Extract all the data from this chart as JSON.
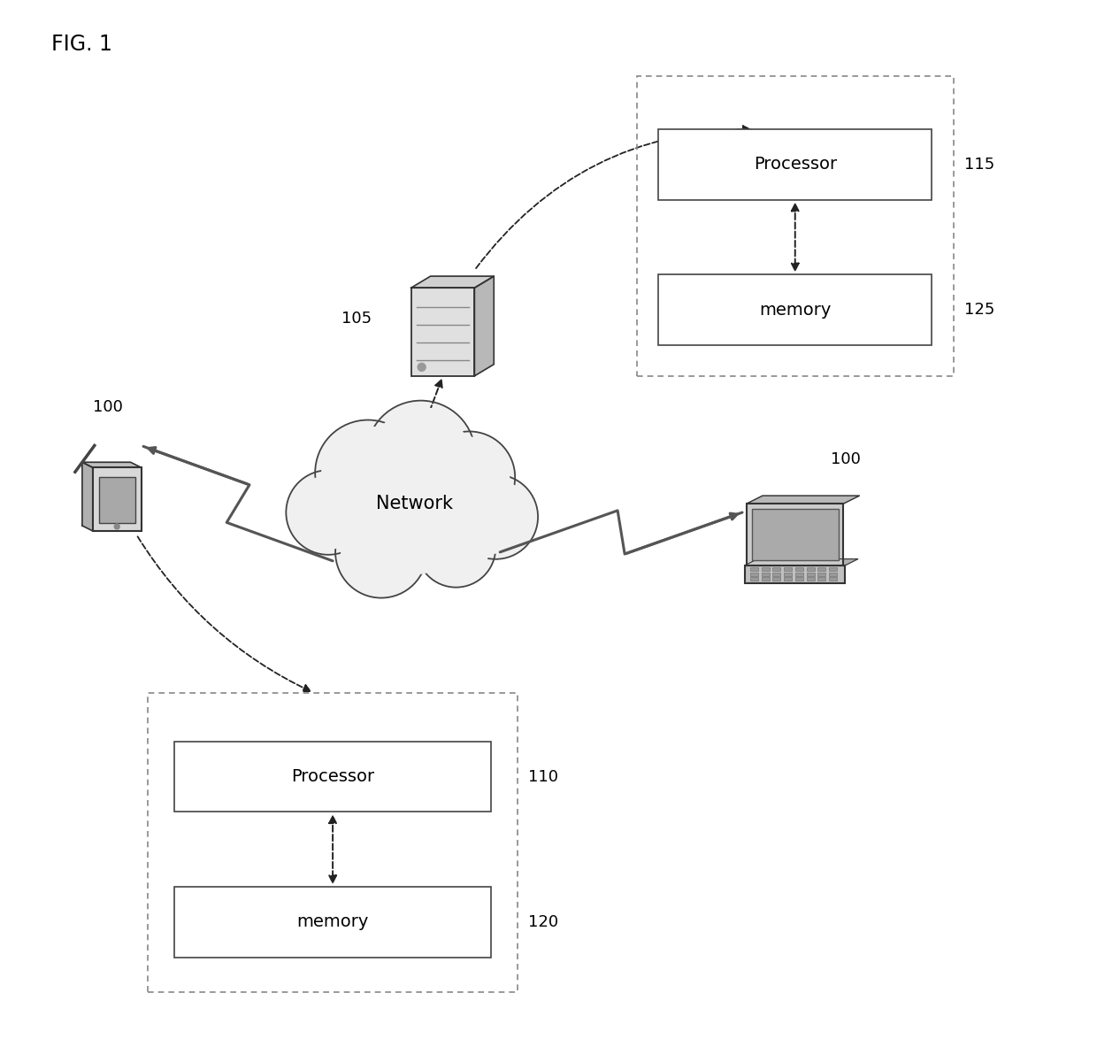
{
  "title": "FIG. 1",
  "background_color": "#ffffff",
  "fig_width": 12.4,
  "fig_height": 11.74,
  "labels": {
    "fig_title": "FIG. 1",
    "network": "Network",
    "processor_top": "Processor",
    "memory_top": "memory",
    "processor_bottom": "Processor",
    "memory_bottom": "memory",
    "label_105": "105",
    "label_100_left": "100",
    "label_100_right": "100",
    "label_110": "110",
    "label_115": "115",
    "label_120": "120",
    "label_125": "125"
  },
  "colors": {
    "box_edge": "#444444",
    "box_fill": "#ffffff",
    "dashed_box_edge": "#888888",
    "text": "#000000",
    "arrow": "#222222",
    "icon_fill": "#cccccc",
    "icon_edge": "#333333",
    "icon_dark": "#888888"
  }
}
